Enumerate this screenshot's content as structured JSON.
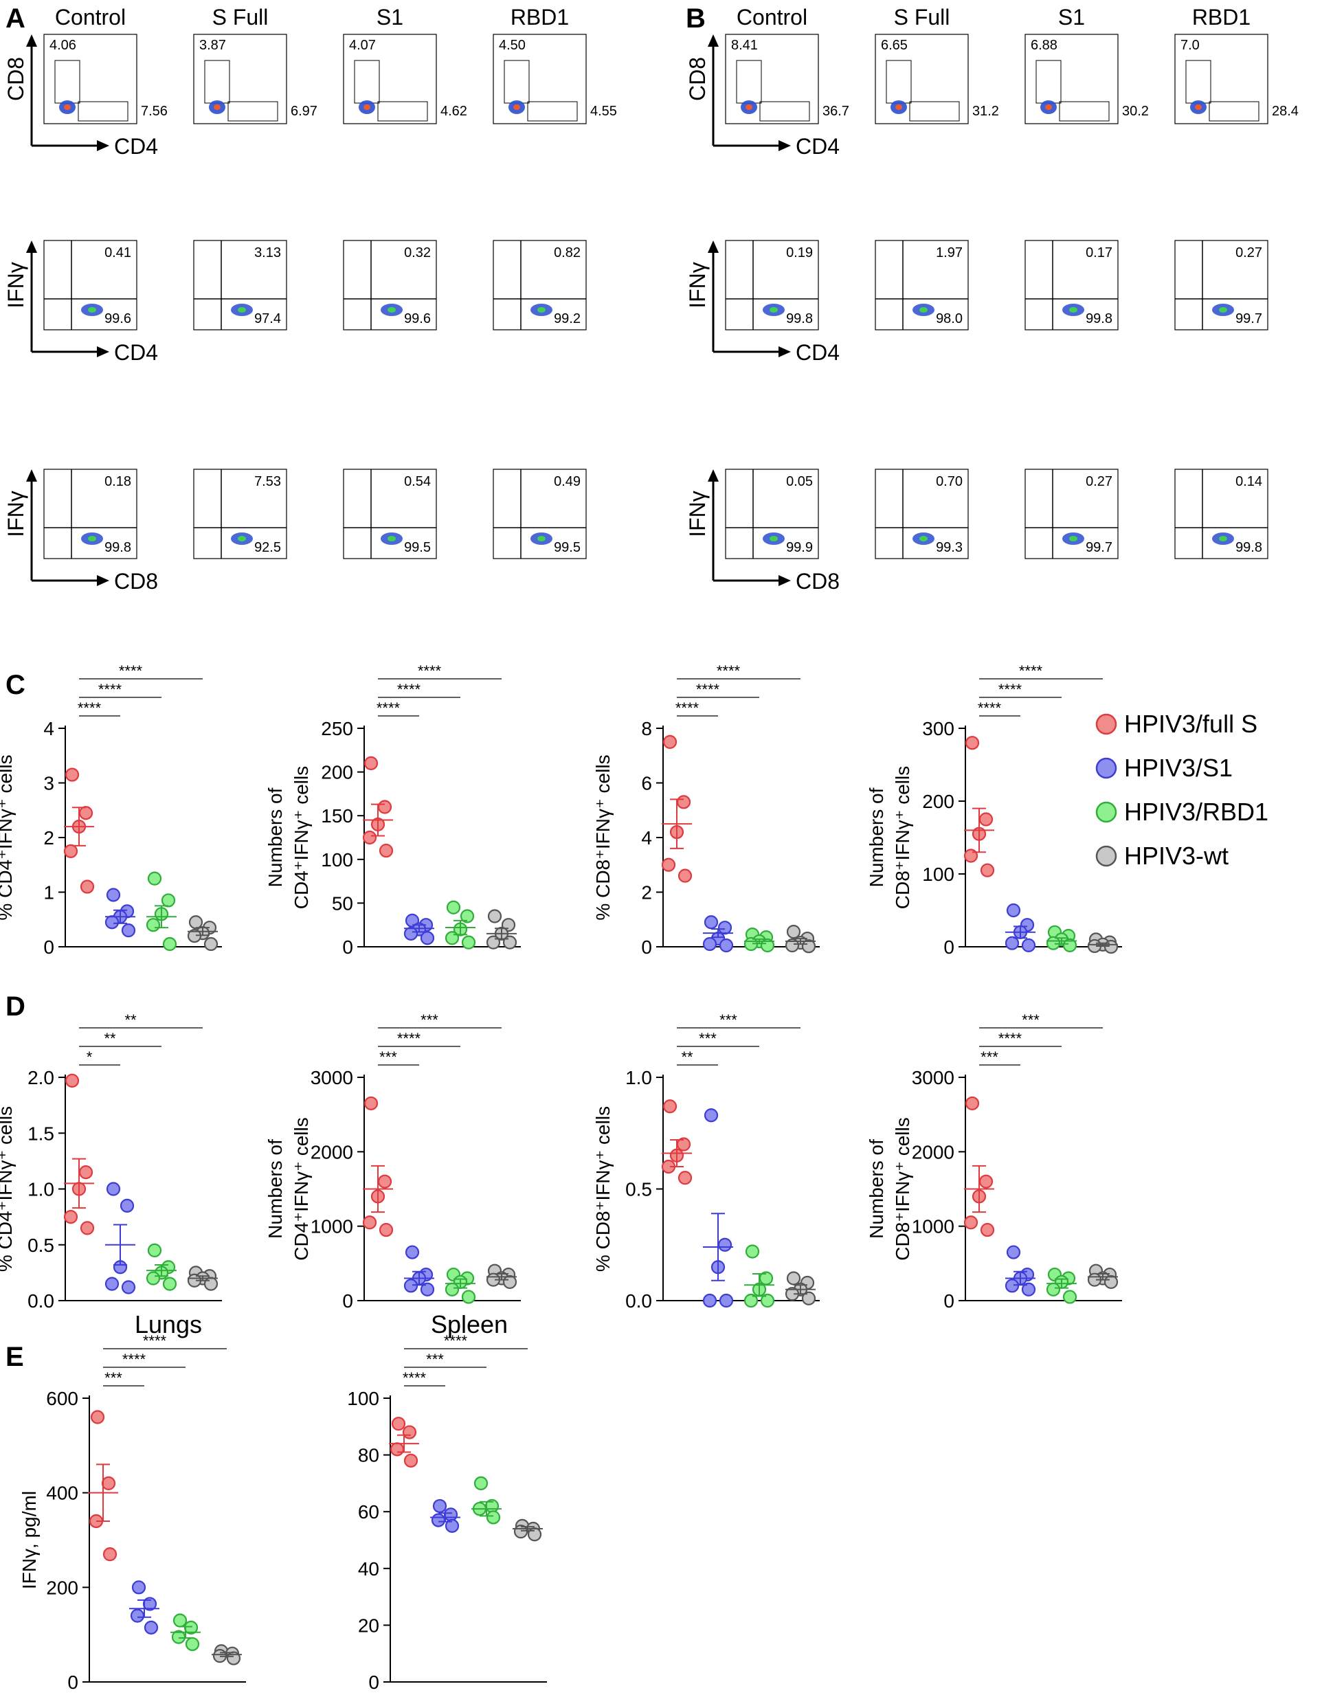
{
  "panels": {
    "A": "A",
    "B": "B",
    "C": "C",
    "D": "D",
    "E": "E"
  },
  "flow_columns": [
    "Control",
    "S Full",
    "S1",
    "RBD1"
  ],
  "flow_axes": {
    "row1": {
      "y": "CD8",
      "x": "CD4"
    },
    "row2": {
      "y": "IFNγ",
      "x": "CD4"
    },
    "row3": {
      "y": "IFNγ",
      "x": "CD8"
    }
  },
  "flow_A": {
    "row1_top": [
      "4.06",
      "3.87",
      "4.07",
      "4.50"
    ],
    "row1_right": [
      "7.56",
      "6.97",
      "4.62",
      "4.55"
    ],
    "row2_top": [
      "0.41",
      "3.13",
      "0.32",
      "0.82"
    ],
    "row2_bottom": [
      "99.6",
      "97.4",
      "99.6",
      "99.2"
    ],
    "row3_top": [
      "0.18",
      "7.53",
      "0.54",
      "0.49"
    ],
    "row3_bottom": [
      "99.8",
      "92.5",
      "99.5",
      "99.5"
    ]
  },
  "flow_B": {
    "row1_top": [
      "8.41",
      "6.65",
      "6.88",
      "7.0"
    ],
    "row1_right": [
      "36.7",
      "31.2",
      "30.2",
      "28.4"
    ],
    "row2_top": [
      "0.19",
      "1.97",
      "0.17",
      "0.27"
    ],
    "row2_bottom": [
      "99.8",
      "98.0",
      "99.8",
      "99.7"
    ],
    "row3_top": [
      "0.05",
      "0.70",
      "0.27",
      "0.14"
    ],
    "row3_bottom": [
      "99.9",
      "99.3",
      "99.7",
      "99.8"
    ]
  },
  "legend": [
    {
      "label": "HPIV3/full S",
      "color": "#f08c8c",
      "stroke": "#e0393e"
    },
    {
      "label": "HPIV3/S1",
      "color": "#8f8ff0",
      "stroke": "#3c3cd6"
    },
    {
      "label": "HPIV3/RBD1",
      "color": "#8ff08f",
      "stroke": "#2fae3a"
    },
    {
      "label": "HPIV3-wt",
      "color": "#c8c8c8",
      "stroke": "#555555"
    }
  ],
  "chart_data": [
    {
      "id": "C1",
      "type": "scatter",
      "ylabel": [
        "% CD4⁺IFNγ⁺ cells"
      ],
      "ylim": [
        0,
        4
      ],
      "ticks": [
        "0",
        "1",
        "2",
        "3",
        "4"
      ],
      "sig": [
        "****",
        "****",
        "****"
      ],
      "groups": [
        [
          3.15,
          2.45,
          2.2,
          1.75,
          1.1
        ],
        [
          0.95,
          0.65,
          0.55,
          0.45,
          0.3
        ],
        [
          1.25,
          0.85,
          0.6,
          0.4,
          0.05
        ],
        [
          0.45,
          0.35,
          0.25,
          0.2,
          0.05
        ]
      ],
      "mean": [
        2.2,
        0.55,
        0.55,
        0.28
      ],
      "sem": [
        0.35,
        0.12,
        0.2,
        0.07
      ]
    },
    {
      "id": "C2",
      "type": "scatter",
      "ylabel": [
        "Numbers of",
        "CD4⁺IFNγ⁺ cells"
      ],
      "ylim": [
        0,
        250
      ],
      "ticks": [
        "0",
        "50",
        "100",
        "150",
        "200",
        "250"
      ],
      "sig": [
        "****",
        "****",
        "****"
      ],
      "groups": [
        [
          210,
          160,
          140,
          125,
          110
        ],
        [
          30,
          25,
          20,
          15,
          10
        ],
        [
          45,
          35,
          20,
          10,
          5
        ],
        [
          35,
          25,
          15,
          5,
          5
        ]
      ],
      "mean": [
        145,
        21,
        22,
        15
      ],
      "sem": [
        18,
        4,
        8,
        6
      ]
    },
    {
      "id": "C3",
      "type": "scatter",
      "ylabel": [
        "% CD8⁺IFNγ⁺ cells"
      ],
      "ylim": [
        0,
        8
      ],
      "ticks": [
        "0",
        "2",
        "4",
        "6",
        "8"
      ],
      "sig": [
        "****",
        "****",
        "****"
      ],
      "groups": [
        [
          7.5,
          5.3,
          4.2,
          3.0,
          2.6
        ],
        [
          0.9,
          0.7,
          0.3,
          0.1,
          0.05
        ],
        [
          0.45,
          0.35,
          0.2,
          0.1,
          0.05
        ],
        [
          0.55,
          0.3,
          0.15,
          0.05,
          0.02
        ]
      ],
      "mean": [
        4.5,
        0.5,
        0.2,
        0.2
      ],
      "sem": [
        0.9,
        0.15,
        0.08,
        0.1
      ]
    },
    {
      "id": "C4",
      "type": "scatter",
      "ylabel": [
        "Numbers of",
        "CD8⁺IFNγ⁺ cells"
      ],
      "ylim": [
        0,
        300
      ],
      "ticks": [
        "0",
        "100",
        "200",
        "300"
      ],
      "sig": [
        "****",
        "****",
        "****"
      ],
      "groups": [
        [
          280,
          175,
          155,
          125,
          105
        ],
        [
          50,
          30,
          20,
          5,
          2
        ],
        [
          20,
          15,
          10,
          5,
          2
        ],
        [
          10,
          6,
          3,
          1,
          0
        ]
      ],
      "mean": [
        160,
        20,
        8,
        3
      ],
      "sem": [
        30,
        8,
        4,
        2
      ]
    },
    {
      "id": "D1",
      "type": "scatter",
      "ylabel": [
        "% CD4⁺IFNγ⁺ cells"
      ],
      "ylim": [
        0,
        2.0
      ],
      "ticks": [
        "0.0",
        "0.5",
        "1.0",
        "1.5",
        "2.0"
      ],
      "sig": [
        "*",
        "**",
        "**"
      ],
      "groups": [
        [
          1.97,
          1.15,
          1.0,
          0.75,
          0.65
        ],
        [
          1.0,
          0.85,
          0.3,
          0.15,
          0.12
        ],
        [
          0.45,
          0.3,
          0.25,
          0.2,
          0.15
        ],
        [
          0.25,
          0.22,
          0.2,
          0.18,
          0.15
        ]
      ],
      "mean": [
        1.05,
        0.5,
        0.27,
        0.2
      ],
      "sem": [
        0.22,
        0.18,
        0.05,
        0.02
      ]
    },
    {
      "id": "D2",
      "type": "scatter",
      "ylabel": [
        "Numbers of",
        "CD4⁺IFNγ⁺ cells"
      ],
      "ylim": [
        0,
        3000
      ],
      "ticks": [
        "0",
        "1000",
        "2000",
        "3000"
      ],
      "sig": [
        "***",
        "****",
        "***"
      ],
      "groups": [
        [
          2650,
          1600,
          1400,
          1050,
          950
        ],
        [
          650,
          350,
          300,
          200,
          150
        ],
        [
          350,
          300,
          250,
          150,
          50
        ],
        [
          400,
          350,
          300,
          280,
          250
        ]
      ],
      "mean": [
        1500,
        300,
        230,
        320
      ],
      "sem": [
        310,
        90,
        60,
        40
      ]
    },
    {
      "id": "D3",
      "type": "scatter",
      "ylabel": [
        "% CD8⁺IFNγ⁺ cells"
      ],
      "ylim": [
        0,
        1.0
      ],
      "ticks": [
        "0.0",
        "0.5",
        "1.0"
      ],
      "sig": [
        "**",
        "***",
        "***"
      ],
      "groups": [
        [
          0.87,
          0.7,
          0.65,
          0.6,
          0.55
        ],
        [
          0.83,
          0.25,
          0.15,
          0.0,
          0.0
        ],
        [
          0.22,
          0.1,
          0.05,
          0.0,
          0.0
        ],
        [
          0.1,
          0.08,
          0.05,
          0.03,
          0.01
        ]
      ],
      "mean": [
        0.66,
        0.24,
        0.07,
        0.05
      ],
      "sem": [
        0.06,
        0.15,
        0.05,
        0.02
      ]
    },
    {
      "id": "D4",
      "type": "scatter",
      "ylabel": [
        "Numbers of",
        "CD8⁺IFNγ⁺ cells"
      ],
      "ylim": [
        0,
        3000
      ],
      "ticks": [
        "0",
        "1000",
        "2000",
        "3000"
      ],
      "sig": [
        "***",
        "****",
        "***"
      ],
      "groups": [
        [
          2650,
          1600,
          1400,
          1050,
          950
        ],
        [
          650,
          350,
          300,
          200,
          150
        ],
        [
          350,
          300,
          250,
          150,
          50
        ],
        [
          400,
          350,
          300,
          280,
          250
        ]
      ],
      "mean": [
        1500,
        300,
        230,
        320
      ],
      "sem": [
        310,
        90,
        60,
        40
      ]
    },
    {
      "id": "E1",
      "type": "scatter",
      "title": "Lungs",
      "ylabel": [
        "IFNγ, pg/ml"
      ],
      "ylim": [
        0,
        600
      ],
      "ticks": [
        "0",
        "200",
        "400",
        "600"
      ],
      "sig": [
        "***",
        "****",
        "****"
      ],
      "groups": [
        [
          560,
          420,
          340,
          270
        ],
        [
          200,
          165,
          140,
          115
        ],
        [
          130,
          115,
          95,
          80
        ],
        [
          65,
          60,
          55,
          50
        ]
      ],
      "mean": [
        400,
        155,
        105,
        58
      ],
      "sem": [
        60,
        18,
        12,
        4
      ]
    },
    {
      "id": "E2",
      "type": "scatter",
      "title": "Spleen",
      "ylabel": [],
      "ylim": [
        0,
        100
      ],
      "ticks": [
        "0",
        "20",
        "40",
        "60",
        "80",
        "100"
      ],
      "sig": [
        "****",
        "***",
        "****"
      ],
      "groups": [
        [
          91,
          88,
          82,
          78
        ],
        [
          62,
          59,
          57,
          55
        ],
        [
          70,
          62,
          61,
          58
        ],
        [
          55,
          54,
          53,
          52
        ]
      ],
      "mean": [
        84,
        58,
        61,
        54
      ],
      "sem": [
        3,
        1.5,
        2.5,
        0.7
      ]
    }
  ]
}
